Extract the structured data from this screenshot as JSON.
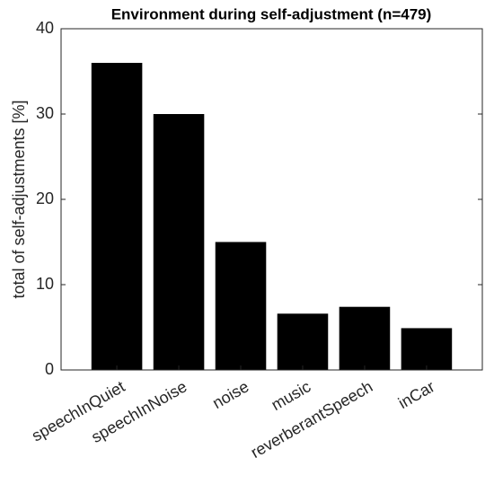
{
  "chart_data": {
    "type": "bar",
    "title": "Environment during self-adjustment (n=479)",
    "y_label": "total of self-adjustments [%]",
    "categories": [
      "speechInQuiet",
      "speechInNoise",
      "noise",
      "music",
      "reverberantSpeech",
      "inCar"
    ],
    "values": [
      36,
      30,
      15,
      6.6,
      7.4,
      4.9
    ],
    "color": "#000000",
    "ylim": [
      0,
      40
    ],
    "yticks": [
      0,
      10,
      20,
      30,
      40
    ]
  }
}
